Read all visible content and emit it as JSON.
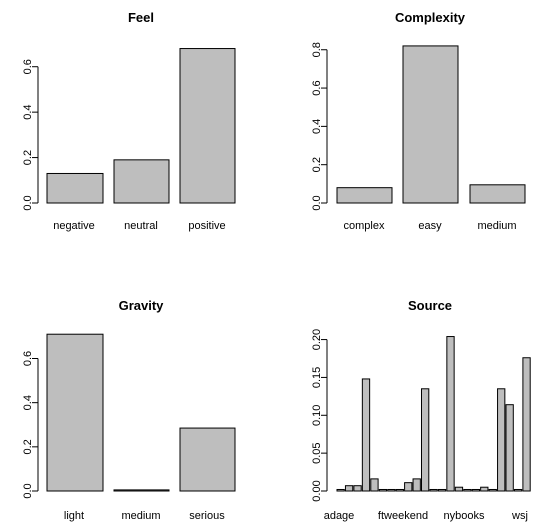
{
  "chart_data": [
    {
      "type": "bar",
      "title": "Feel",
      "categories": [
        "negative",
        "neutral",
        "positive"
      ],
      "values": [
        0.13,
        0.19,
        0.68
      ],
      "yticks": [
        "0.0",
        "0.2",
        "0.4",
        "0.6"
      ],
      "ylim": [
        0,
        0.7
      ],
      "grid": false
    },
    {
      "type": "bar",
      "title": "Complexity",
      "categories": [
        "complex",
        "easy",
        "medium"
      ],
      "values": [
        0.08,
        0.82,
        0.095
      ],
      "yticks": [
        "0.0",
        "0.2",
        "0.4",
        "0.6",
        "0.8"
      ],
      "ylim": [
        0,
        0.83
      ],
      "grid": false
    },
    {
      "type": "bar",
      "title": "Gravity",
      "categories": [
        "light",
        "medium",
        "serious"
      ],
      "values": [
        0.71,
        0.005,
        0.285
      ],
      "yticks": [
        "0.0",
        "0.2",
        "0.4",
        "0.6"
      ],
      "ylim": [
        0,
        0.72
      ],
      "grid": false
    },
    {
      "type": "bar",
      "title": "Source",
      "shown_tick_labels": [
        "adage",
        "ftweekend",
        "nybooks",
        "wsj"
      ],
      "values": [
        0.002,
        0.007,
        0.007,
        0.148,
        0.016,
        0.002,
        0.002,
        0.002,
        0.011,
        0.016,
        0.135,
        0.002,
        0.002,
        0.204,
        0.005,
        0.002,
        0.002,
        0.005,
        0.002,
        0.135,
        0.114,
        0.002,
        0.176
      ],
      "yticks": [
        "0.00",
        "0.05",
        "0.10",
        "0.15",
        "0.20"
      ],
      "ylim": [
        0,
        0.21
      ],
      "grid": false
    }
  ]
}
